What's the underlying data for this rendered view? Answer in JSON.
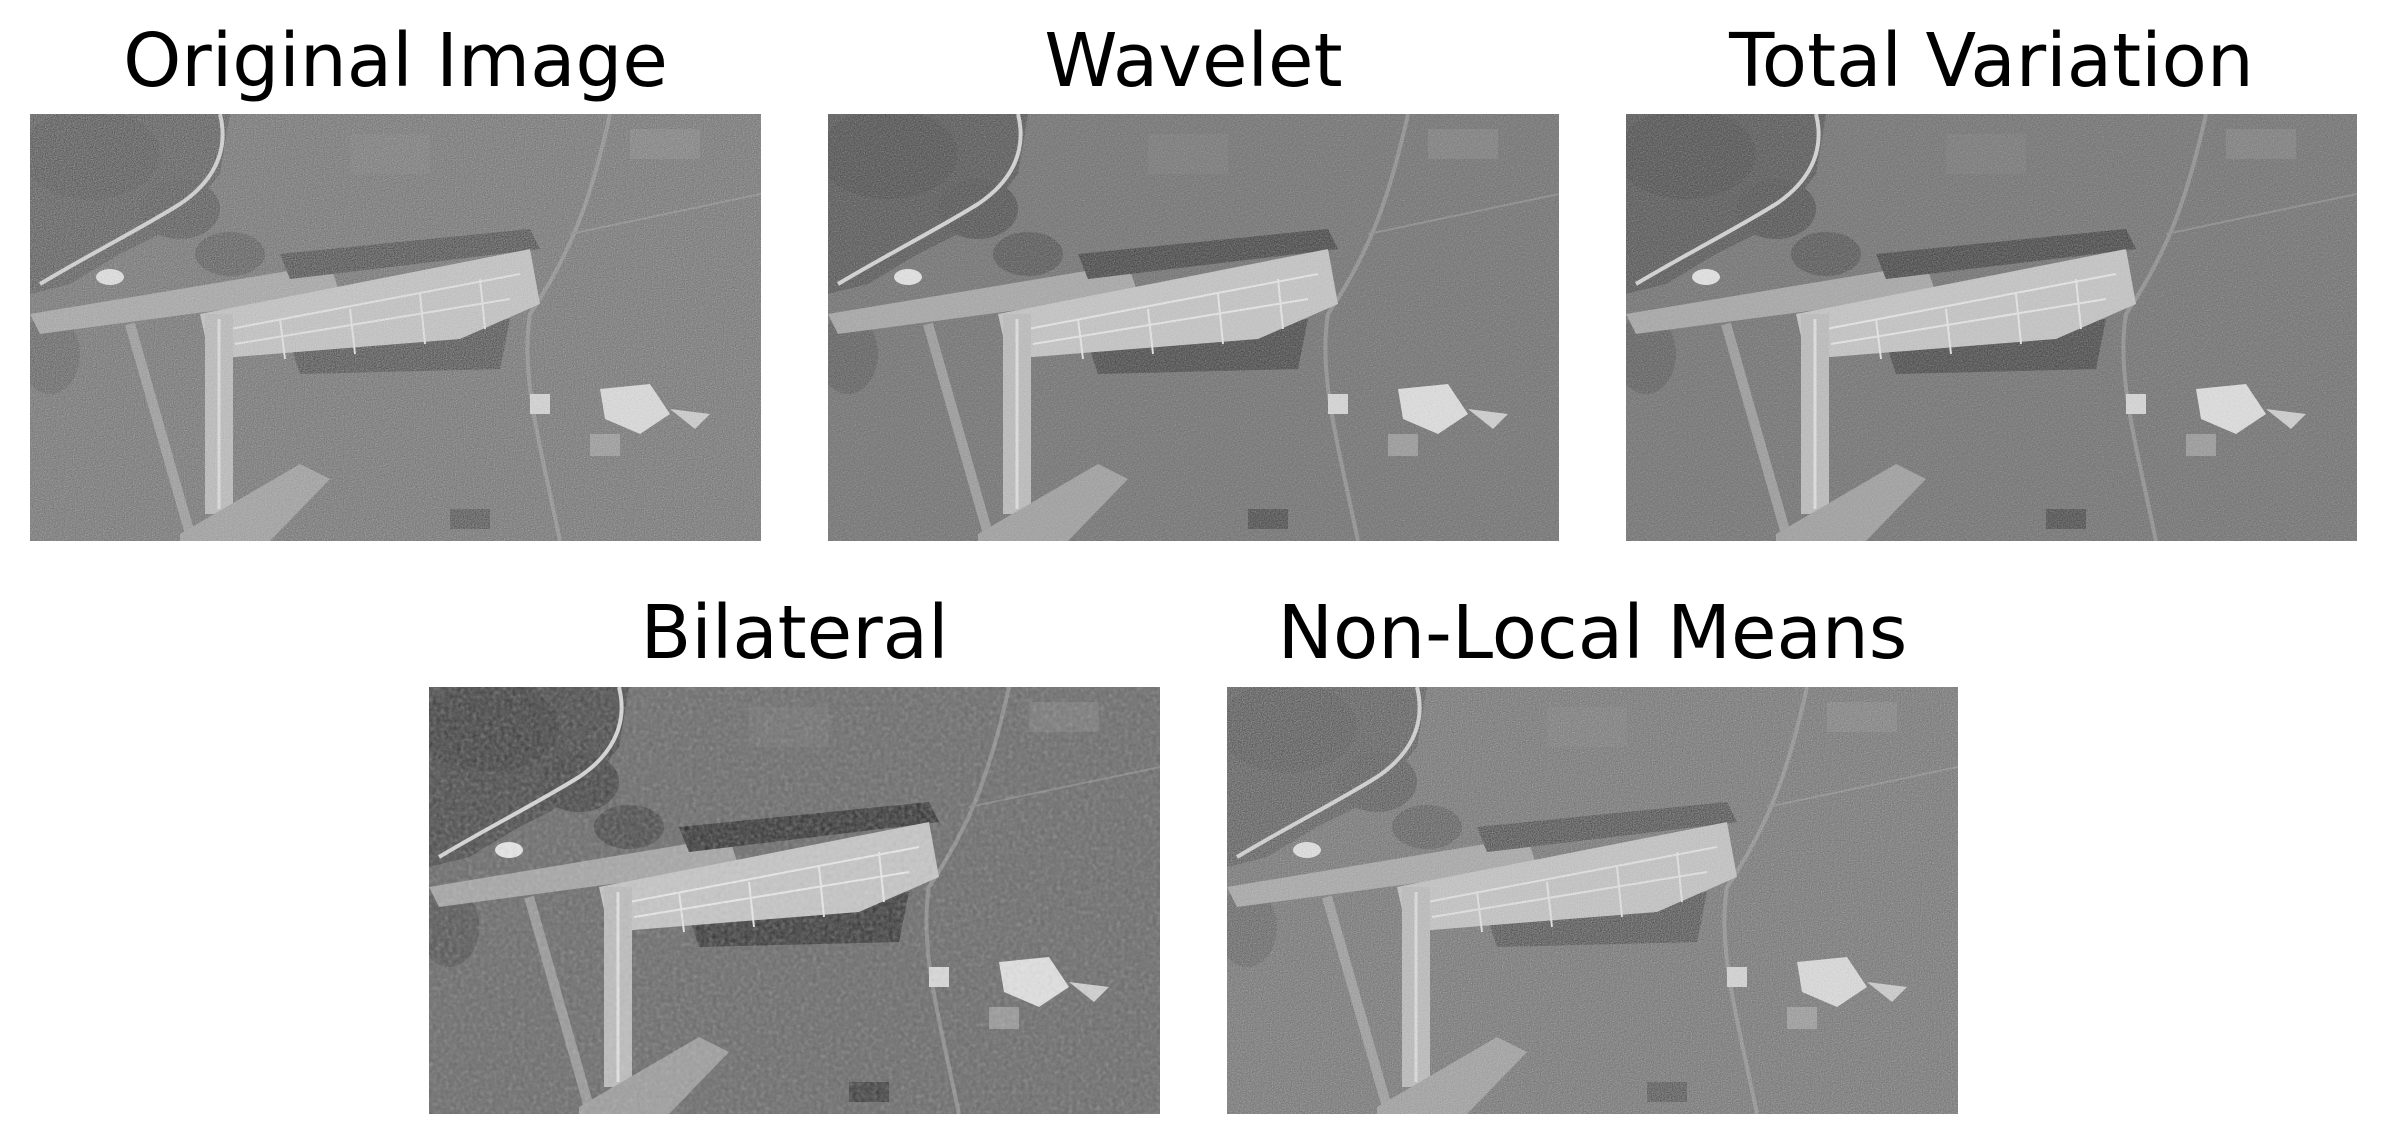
{
  "figure": {
    "panels": [
      {
        "title": "Original Image",
        "blur": 0,
        "noise": "n0",
        "contrast": 1.15
      },
      {
        "title": "Wavelet",
        "blur": 0.4,
        "noise": "n1",
        "contrast": 1.1
      },
      {
        "title": "Total Variation",
        "blur": 0.3,
        "noise": "n1",
        "contrast": 1.12
      },
      {
        "title": "Bilateral",
        "blur": 1.4,
        "noise": "n2",
        "contrast": 1.0
      },
      {
        "title": "Non-Local Means",
        "blur": 0.2,
        "noise": "n0",
        "contrast": 1.15
      }
    ]
  },
  "colors": {
    "background": "#ffffff",
    "title": "#000000",
    "terrain": "#6e6e6e",
    "dark_forest": "#3c3c3c",
    "bright_fields": "#dcdcdc",
    "runway": "#c8c8c8"
  }
}
